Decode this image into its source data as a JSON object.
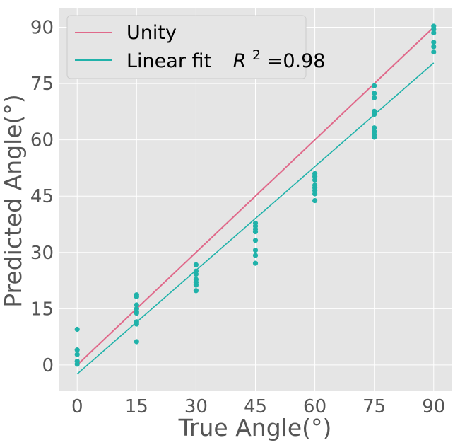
{
  "chart_data": {
    "type": "scatter",
    "title": "",
    "xlabel": "True Angle(°)",
    "ylabel": "Predicted Angle(°)",
    "xlim": [
      -4.5,
      94.5
    ],
    "ylim": [
      -7,
      95
    ],
    "xticks": [
      0,
      15,
      30,
      45,
      60,
      75,
      90
    ],
    "xtick_labels": [
      "0",
      "15",
      "30",
      "45",
      "60",
      "75",
      "90"
    ],
    "yticks": [
      0,
      15,
      30,
      45,
      60,
      75,
      90
    ],
    "ytick_labels": [
      "0",
      "15",
      "30",
      "45",
      "60",
      "75",
      "90"
    ],
    "grid": true,
    "legend_position": "top-left",
    "colors": {
      "background": "#e5e5e5",
      "grid": "#ffffff",
      "points": "#20b2aa",
      "unity": "#e0698a",
      "fit": "#20b2aa"
    },
    "points": [
      {
        "x": 0,
        "y": 9.5
      },
      {
        "x": 0,
        "y": 4.0
      },
      {
        "x": 0,
        "y": 2.8
      },
      {
        "x": 0,
        "y": 1.0
      },
      {
        "x": 0,
        "y": 0.2
      },
      {
        "x": 15,
        "y": 18.7
      },
      {
        "x": 15,
        "y": 18.2
      },
      {
        "x": 15,
        "y": 16.0
      },
      {
        "x": 15,
        "y": 15.0
      },
      {
        "x": 15,
        "y": 14.2
      },
      {
        "x": 15,
        "y": 13.8
      },
      {
        "x": 15,
        "y": 11.5
      },
      {
        "x": 15,
        "y": 10.9
      },
      {
        "x": 15,
        "y": 6.2
      },
      {
        "x": 30,
        "y": 26.7
      },
      {
        "x": 30,
        "y": 25.0
      },
      {
        "x": 30,
        "y": 24.2
      },
      {
        "x": 30,
        "y": 22.8
      },
      {
        "x": 30,
        "y": 22.0
      },
      {
        "x": 30,
        "y": 21.3
      },
      {
        "x": 30,
        "y": 19.8
      },
      {
        "x": 45,
        "y": 37.8
      },
      {
        "x": 45,
        "y": 37.0
      },
      {
        "x": 45,
        "y": 36.2
      },
      {
        "x": 45,
        "y": 35.5
      },
      {
        "x": 45,
        "y": 33.2
      },
      {
        "x": 45,
        "y": 30.6
      },
      {
        "x": 45,
        "y": 29.2
      },
      {
        "x": 45,
        "y": 27.1
      },
      {
        "x": 60,
        "y": 51.0
      },
      {
        "x": 60,
        "y": 50.2
      },
      {
        "x": 60,
        "y": 49.3
      },
      {
        "x": 60,
        "y": 47.9
      },
      {
        "x": 60,
        "y": 47.2
      },
      {
        "x": 60,
        "y": 46.5
      },
      {
        "x": 60,
        "y": 45.6
      },
      {
        "x": 60,
        "y": 43.8
      },
      {
        "x": 75,
        "y": 74.4
      },
      {
        "x": 75,
        "y": 72.4
      },
      {
        "x": 75,
        "y": 71.2
      },
      {
        "x": 75,
        "y": 67.6
      },
      {
        "x": 75,
        "y": 66.8
      },
      {
        "x": 75,
        "y": 63.2
      },
      {
        "x": 75,
        "y": 62.2
      },
      {
        "x": 75,
        "y": 61.4
      },
      {
        "x": 75,
        "y": 60.7
      },
      {
        "x": 90,
        "y": 90.3
      },
      {
        "x": 90,
        "y": 89.4
      },
      {
        "x": 90,
        "y": 88.5
      },
      {
        "x": 90,
        "y": 86.0
      },
      {
        "x": 90,
        "y": 84.8
      },
      {
        "x": 90,
        "y": 83.4
      }
    ],
    "lines": [
      {
        "name": "Unity",
        "x": [
          0,
          90
        ],
        "y": [
          0,
          90
        ],
        "color": "#e0698a"
      },
      {
        "name": "Linear fit",
        "x": [
          0,
          90
        ],
        "y": [
          -2.4,
          80.5
        ],
        "color": "#20b2aa"
      }
    ],
    "legend": {
      "unity_label": "Unity",
      "fit_label": "Linear fit",
      "fit_r2_symbol": "R",
      "fit_r2_exponent": "2",
      "fit_r2_value": "=0.98"
    }
  }
}
